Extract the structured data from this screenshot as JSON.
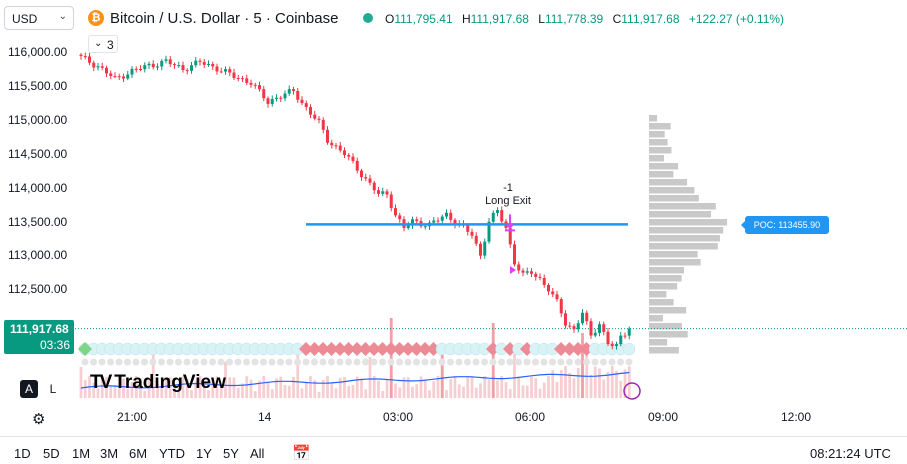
{
  "header": {
    "currency": "USD",
    "symbol_title": "Bitcoin / U.S. Dollar · 5 · Coinbase",
    "ohlc": [
      {
        "key": "O",
        "value": "111,795.41"
      },
      {
        "key": "H",
        "value": "111,917.68"
      },
      {
        "key": "L",
        "value": "111,778.39"
      },
      {
        "key": "C",
        "value": "111,917.68"
      }
    ],
    "change": "+122.27 (+0.11%)",
    "indicator_count": "3"
  },
  "price_axis": {
    "ticks": [
      "116,000.00",
      "115,500.00",
      "115,000.00",
      "114,500.00",
      "114,000.00",
      "113,500.00",
      "113,000.00",
      "112,500.00"
    ],
    "current_price": "111,917.68",
    "countdown": "03:36"
  },
  "time_axis": {
    "ticks": [
      "21:00",
      "14",
      "03:00",
      "06:00",
      "09:00",
      "12:00"
    ]
  },
  "annotation": {
    "count": "-1",
    "label": "Long Exit"
  },
  "poc": {
    "label": "POC: 113455.90",
    "value": 113455.9
  },
  "controls": {
    "auto": "A",
    "log": "L",
    "logo": "TradingView"
  },
  "bottom": {
    "ranges": [
      "1D",
      "5D",
      "1M",
      "3M",
      "6M",
      "YTD",
      "1Y",
      "5Y",
      "All"
    ],
    "clock": "08:21:24 UTC"
  },
  "colors": {
    "up": "#089981",
    "down": "#f23645",
    "poc": "#2196f3",
    "profile": "#c9c9c9",
    "signal": "#e040fb",
    "vwap": "#2962ff"
  },
  "chart_data": {
    "type": "candlestick",
    "interval": "5 minutes",
    "x_ticks": [
      "21:00",
      "14",
      "03:00",
      "06:00",
      "09:00",
      "12:00"
    ],
    "y_ticks": [
      116000,
      115500,
      115000,
      114500,
      114000,
      113500,
      113000,
      112500
    ],
    "close_path": [
      [
        0,
        115920
      ],
      [
        4,
        115790
      ],
      [
        8,
        115600
      ],
      [
        12,
        115720
      ],
      [
        16,
        115800
      ],
      [
        20,
        115860
      ],
      [
        24,
        115750
      ],
      [
        28,
        115850
      ],
      [
        32,
        115760
      ],
      [
        36,
        115640
      ],
      [
        40,
        115550
      ],
      [
        44,
        115260
      ],
      [
        46,
        115330
      ],
      [
        50,
        115420
      ],
      [
        52,
        115250
      ],
      [
        56,
        114950
      ],
      [
        58,
        114700
      ],
      [
        62,
        114500
      ],
      [
        66,
        114200
      ],
      [
        70,
        113900
      ],
      [
        72,
        113900
      ],
      [
        74,
        113600
      ],
      [
        76,
        113400
      ],
      [
        78,
        113500
      ],
      [
        82,
        113450
      ],
      [
        86,
        113600
      ],
      [
        88,
        113500
      ],
      [
        92,
        113300
      ],
      [
        94,
        113000
      ],
      [
        96,
        113500
      ],
      [
        98,
        113650
      ],
      [
        100,
        113400
      ],
      [
        102,
        112900
      ],
      [
        104,
        112700
      ],
      [
        106,
        112750
      ],
      [
        108,
        112650
      ],
      [
        110,
        112500
      ],
      [
        112,
        112300
      ],
      [
        114,
        112000
      ],
      [
        116,
        111900
      ],
      [
        118,
        112150
      ],
      [
        120,
        111800
      ],
      [
        122,
        112000
      ],
      [
        124,
        111700
      ],
      [
        126,
        111650
      ],
      [
        127,
        111780
      ],
      [
        129,
        111918
      ]
    ],
    "last_close": 111917.68,
    "poc": 113455.9,
    "annotation": {
      "label": "Long Exit",
      "count": "-1"
    }
  }
}
